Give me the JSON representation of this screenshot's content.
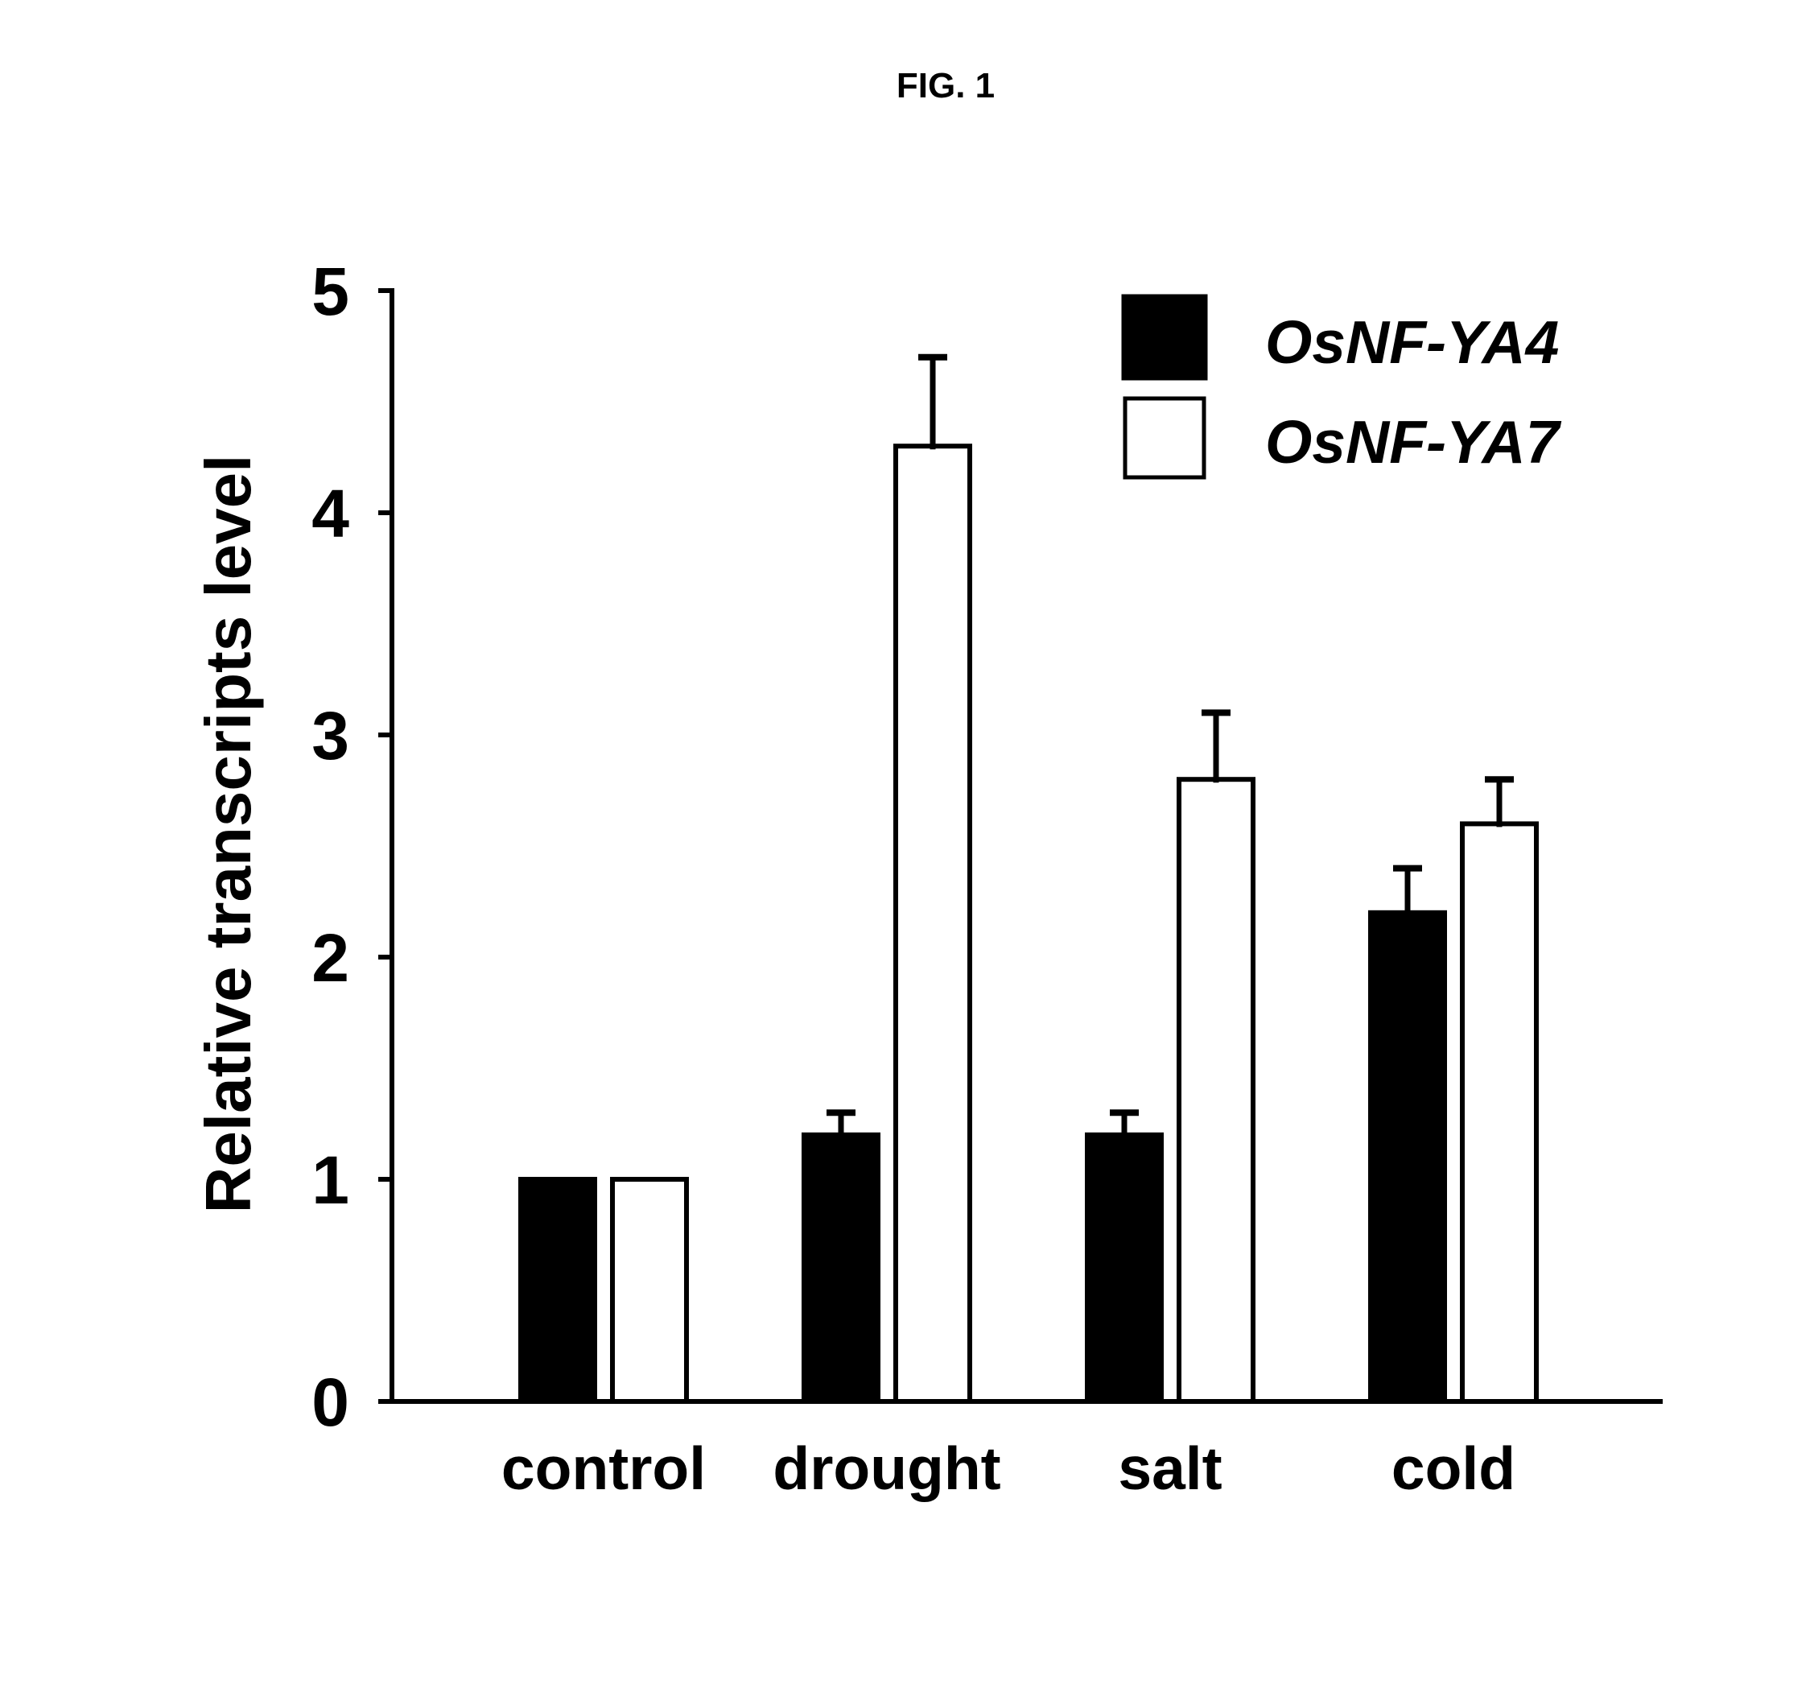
{
  "figure_label": "FIG. 1",
  "colors": {
    "axis": "#000000",
    "outline": "#000000"
  },
  "chart_data": {
    "type": "bar",
    "ylabel": "Relative transcripts level",
    "categories": [
      "control",
      "drought",
      "salt",
      "cold"
    ],
    "ylim": [
      0,
      5
    ],
    "yticks": [
      0,
      1,
      2,
      3,
      4,
      5
    ],
    "grid": false,
    "legend": "top-right",
    "series": [
      {
        "name": "OsNF-YA4",
        "color": "#000000",
        "values": [
          1.0,
          1.2,
          1.2,
          2.2
        ],
        "error_upper": [
          0,
          0.1,
          0.1,
          0.2
        ]
      },
      {
        "name": "OsNF-YA7",
        "color": "#ffffff",
        "values": [
          1.0,
          4.3,
          2.8,
          2.6
        ],
        "error_upper": [
          0,
          0.4,
          0.3,
          0.2
        ]
      }
    ]
  }
}
